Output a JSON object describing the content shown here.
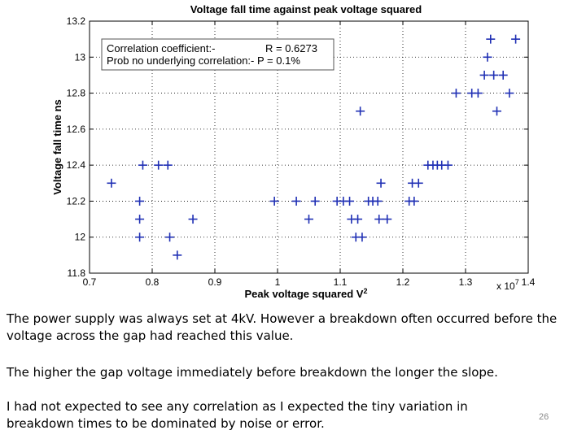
{
  "chart_data": {
    "type": "scatter",
    "title": "Voltage fall time against peak voltage squared",
    "xlabel": "Peak voltage squared V",
    "xlabel_superscript": "2",
    "ylabel": "Voltage fall time ns",
    "x_multiplier": "x 10",
    "x_multiplier_exponent": "7",
    "xlim": [
      0.7,
      1.4
    ],
    "ylim": [
      11.8,
      13.2
    ],
    "xticks": [
      "0.7",
      "0.8",
      "0.9",
      "1",
      "1.1",
      "1.2",
      "1.3",
      "1.4"
    ],
    "yticks": [
      "11.8",
      "12",
      "12.2",
      "12.4",
      "12.6",
      "12.8",
      "13",
      "13.2"
    ],
    "grid": true,
    "marker": "+",
    "marker_color": "#1f2fb4",
    "legend_lines": [
      {
        "label": "Correlation coefficient:-",
        "value": "R = 0.6273"
      },
      {
        "label": "Prob no underlying correlation:- P = 0.1%",
        "value": ""
      }
    ],
    "points": [
      [
        0.735,
        12.3
      ],
      [
        0.78,
        12.2
      ],
      [
        0.78,
        12.1
      ],
      [
        0.78,
        12.0
      ],
      [
        0.785,
        12.4
      ],
      [
        0.81,
        12.4
      ],
      [
        0.825,
        12.4
      ],
      [
        0.828,
        12.0
      ],
      [
        0.84,
        11.9
      ],
      [
        0.865,
        12.1
      ],
      [
        0.995,
        12.2
      ],
      [
        1.03,
        12.2
      ],
      [
        1.05,
        12.1
      ],
      [
        1.06,
        12.2
      ],
      [
        1.095,
        12.2
      ],
      [
        1.105,
        12.2
      ],
      [
        1.115,
        12.2
      ],
      [
        1.118,
        12.1
      ],
      [
        1.125,
        12.0
      ],
      [
        1.128,
        12.1
      ],
      [
        1.132,
        12.7
      ],
      [
        1.135,
        12.0
      ],
      [
        1.145,
        12.2
      ],
      [
        1.152,
        12.2
      ],
      [
        1.16,
        12.2
      ],
      [
        1.162,
        12.1
      ],
      [
        1.165,
        12.3
      ],
      [
        1.175,
        12.1
      ],
      [
        1.21,
        12.2
      ],
      [
        1.215,
        12.3
      ],
      [
        1.218,
        12.2
      ],
      [
        1.225,
        12.3
      ],
      [
        1.24,
        12.4
      ],
      [
        1.248,
        12.4
      ],
      [
        1.255,
        12.4
      ],
      [
        1.262,
        12.4
      ],
      [
        1.272,
        12.4
      ],
      [
        1.285,
        12.8
      ],
      [
        1.31,
        12.8
      ],
      [
        1.32,
        12.8
      ],
      [
        1.33,
        12.9
      ],
      [
        1.335,
        13.0
      ],
      [
        1.34,
        13.1
      ],
      [
        1.345,
        12.9
      ],
      [
        1.35,
        12.7
      ],
      [
        1.36,
        12.9
      ],
      [
        1.37,
        12.8
      ],
      [
        1.38,
        13.1
      ]
    ]
  },
  "captions": {
    "paragraph1": "The power supply was always set at 4kV.  However a breakdown often occurred before the voltage across the gap had reached this value.",
    "paragraph2": "The higher the gap voltage immediately before breakdown the longer the slope.",
    "paragraph3": "I had not expected to see any correlation as I expected the tiny variation in breakdown times to be dominated by noise or error."
  },
  "slide_number": "26"
}
